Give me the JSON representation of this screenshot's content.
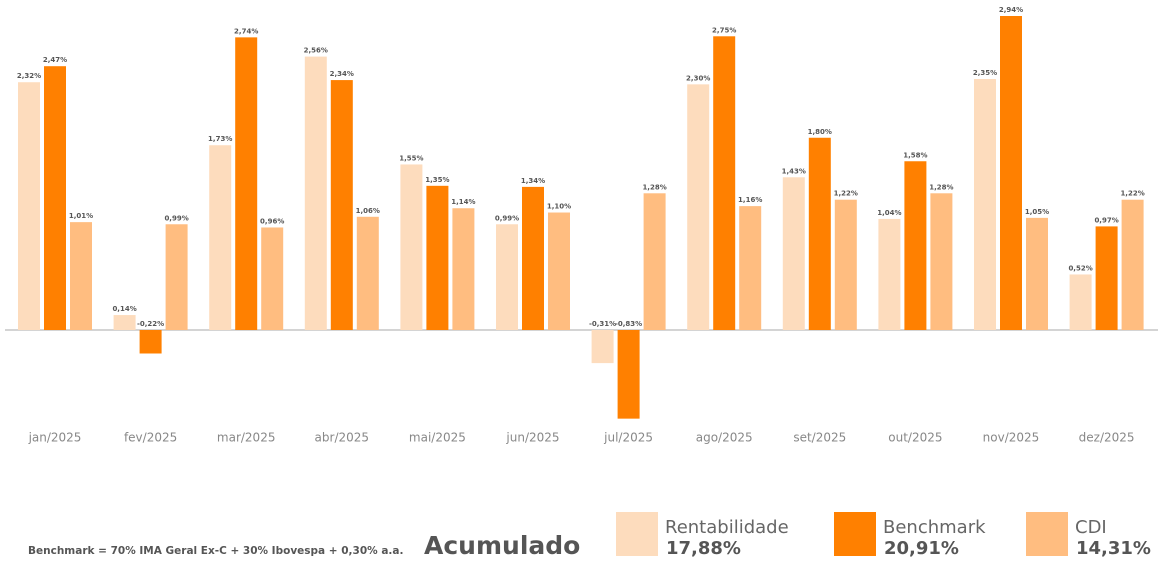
{
  "chart_data": {
    "type": "bar",
    "categories": [
      "jan/2025",
      "fev/2025",
      "mar/2025",
      "abr/2025",
      "mai/2025",
      "jun/2025",
      "jul/2025",
      "ago/2025",
      "set/2025",
      "out/2025",
      "nov/2025",
      "dez/2025"
    ],
    "series": [
      {
        "name": "Rentabilidade",
        "color": "#fddcbd",
        "values": [
          2.32,
          0.14,
          1.73,
          2.56,
          1.55,
          0.99,
          -0.31,
          2.3,
          1.43,
          1.04,
          2.35,
          0.52
        ],
        "value_labels": [
          "2,32%",
          "0,14%",
          "1,73%",
          "2,56%",
          "1,55%",
          "0,99%",
          "-0,31%",
          "2,30%",
          "1,43%",
          "1,04%",
          "2,35%",
          "0,52%"
        ]
      },
      {
        "name": "Benchmark",
        "color": "#ff8000",
        "values": [
          2.47,
          -0.22,
          2.74,
          2.34,
          1.35,
          1.34,
          -0.83,
          2.75,
          1.8,
          1.58,
          2.94,
          0.97
        ],
        "value_labels": [
          "2,47%",
          "-0,22%",
          "2,74%",
          "2,34%",
          "1,35%",
          "1,34%",
          "-0,83%",
          "2,75%",
          "1,80%",
          "1,58%",
          "2,94%",
          "0,97%"
        ]
      },
      {
        "name": "CDI",
        "color": "#ffbd80",
        "values": [
          1.01,
          0.99,
          0.96,
          1.06,
          1.14,
          1.1,
          1.28,
          1.16,
          1.22,
          1.28,
          1.05,
          1.22
        ],
        "value_labels": [
          "1,01%",
          "0,99%",
          "0,96%",
          "1,06%",
          "1,14%",
          "1,10%",
          "1,28%",
          "1,16%",
          "1,22%",
          "1,28%",
          "1,05%",
          "1,22%"
        ]
      }
    ],
    "summary_label": "Acumulado",
    "summary_values": [
      "17,88%",
      "20,91%",
      "14,31%"
    ],
    "footnote": "Benchmark = 70% IMA Geral Ex-C + 30% Ibovespa + 0,30% a.a."
  }
}
